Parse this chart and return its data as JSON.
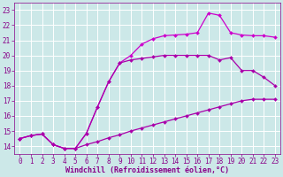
{
  "line1": {
    "x": [
      0,
      1,
      2,
      3,
      4,
      5,
      6,
      7,
      8,
      9,
      10,
      11,
      12,
      13,
      14,
      15,
      16,
      17,
      18,
      19,
      20,
      21,
      22,
      23
    ],
    "y": [
      14.5,
      14.7,
      14.8,
      14.1,
      13.85,
      13.85,
      14.1,
      14.3,
      14.55,
      14.75,
      15.0,
      15.2,
      15.4,
      15.6,
      15.8,
      16.0,
      16.2,
      16.4,
      16.6,
      16.8,
      17.0,
      17.1,
      17.1,
      17.1
    ],
    "color": "#aa00aa",
    "marker": "D",
    "markersize": 2.0,
    "linewidth": 0.9
  },
  "line2": {
    "x": [
      0,
      1,
      2,
      3,
      4,
      5,
      6,
      7,
      8,
      9,
      10,
      11,
      12,
      13,
      14,
      15,
      16,
      17,
      18,
      19,
      20,
      21,
      22,
      23
    ],
    "y": [
      14.5,
      14.7,
      14.8,
      14.1,
      13.85,
      13.85,
      14.85,
      16.6,
      18.25,
      19.5,
      20.0,
      20.75,
      21.1,
      21.3,
      21.35,
      21.4,
      21.5,
      22.8,
      22.65,
      21.5,
      21.35,
      21.3,
      21.3,
      21.2
    ],
    "color": "#cc00cc",
    "marker": "D",
    "markersize": 2.0,
    "linewidth": 0.9
  },
  "line3": {
    "x": [
      0,
      1,
      2,
      3,
      4,
      5,
      6,
      7,
      8,
      9,
      10,
      11,
      12,
      13,
      14,
      15,
      16,
      17,
      18,
      19,
      20,
      21,
      22,
      23
    ],
    "y": [
      14.5,
      14.7,
      14.8,
      14.1,
      13.85,
      13.85,
      14.85,
      16.6,
      18.25,
      19.5,
      19.7,
      19.8,
      19.9,
      20.0,
      20.0,
      20.0,
      20.0,
      20.0,
      19.7,
      19.85,
      19.0,
      19.0,
      18.55,
      18.0
    ],
    "color": "#aa00aa",
    "marker": "D",
    "markersize": 2.0,
    "linewidth": 0.9
  },
  "xlabel": "Windchill (Refroidissement éolien,°C)",
  "xlim": [
    -0.5,
    23.5
  ],
  "ylim": [
    13.5,
    23.5
  ],
  "xticks": [
    0,
    1,
    2,
    3,
    4,
    5,
    6,
    7,
    8,
    9,
    10,
    11,
    12,
    13,
    14,
    15,
    16,
    17,
    18,
    19,
    20,
    21,
    22,
    23
  ],
  "yticks": [
    14,
    15,
    16,
    17,
    18,
    19,
    20,
    21,
    22,
    23
  ],
  "bg_color": "#cce8e8",
  "grid_color": "#ffffff",
  "tick_color": "#880088",
  "label_color": "#880088",
  "xlabel_fontsize": 6.0,
  "tick_fontsize": 5.5
}
